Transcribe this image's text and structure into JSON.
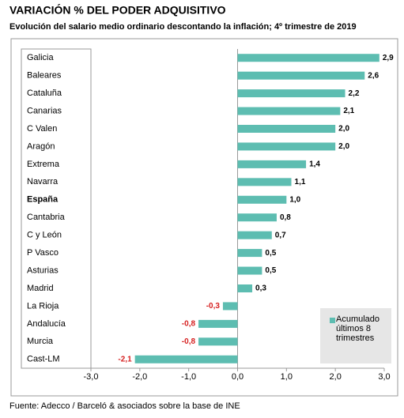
{
  "chart_data": {
    "type": "barh",
    "title": "VARIACIÓN % DEL PODER ADQUISITIVO",
    "subtitle": "Evolución del salario medio ordinario descontando la inflación; 4º trimestre de 2019",
    "source": "Fuente: Adecco / Barceló & asociados sobre la base de INE",
    "categories": [
      "Galicia",
      "Baleares",
      "Cataluña",
      "Canarias",
      "C Valen",
      "Aragón",
      "Extrema",
      "Navarra",
      "España",
      "Cantabria",
      "C y León",
      "P Vasco",
      "Asturias",
      "Madrid",
      "La Rioja",
      "Andalucía",
      "Murcia",
      "Cast-LM"
    ],
    "bold_category": "España",
    "series": [
      {
        "name": "Acumulado últimos 8 trimestres",
        "color": "#5dbdb1",
        "values": [
          2.9,
          2.6,
          2.2,
          2.1,
          2.0,
          2.0,
          1.4,
          1.1,
          1.0,
          0.8,
          0.7,
          0.5,
          0.5,
          0.3,
          -0.3,
          -0.8,
          -0.8,
          -2.1
        ],
        "value_labels": [
          "2,9",
          "2,6",
          "2,2",
          "2,1",
          "2,0",
          "2,0",
          "1,4",
          "1,1",
          "1,0",
          "0,8",
          "0,7",
          "0,5",
          "0,5",
          "0,3",
          "-0,3",
          "-0,8",
          "-0,8",
          "-2,1"
        ]
      }
    ],
    "xlim": [
      -3,
      3
    ],
    "xticks": [
      {
        "value": -3,
        "label": "-3,0"
      },
      {
        "value": -2,
        "label": "-2,0"
      },
      {
        "value": -1,
        "label": "-1,0"
      },
      {
        "value": 0,
        "label": "0,0"
      },
      {
        "value": 1,
        "label": "1,0"
      },
      {
        "value": 2,
        "label": "2,0"
      },
      {
        "value": 3,
        "label": "3,0"
      }
    ],
    "negative_label_color": "#d62020",
    "legend": "bottom-right"
  }
}
